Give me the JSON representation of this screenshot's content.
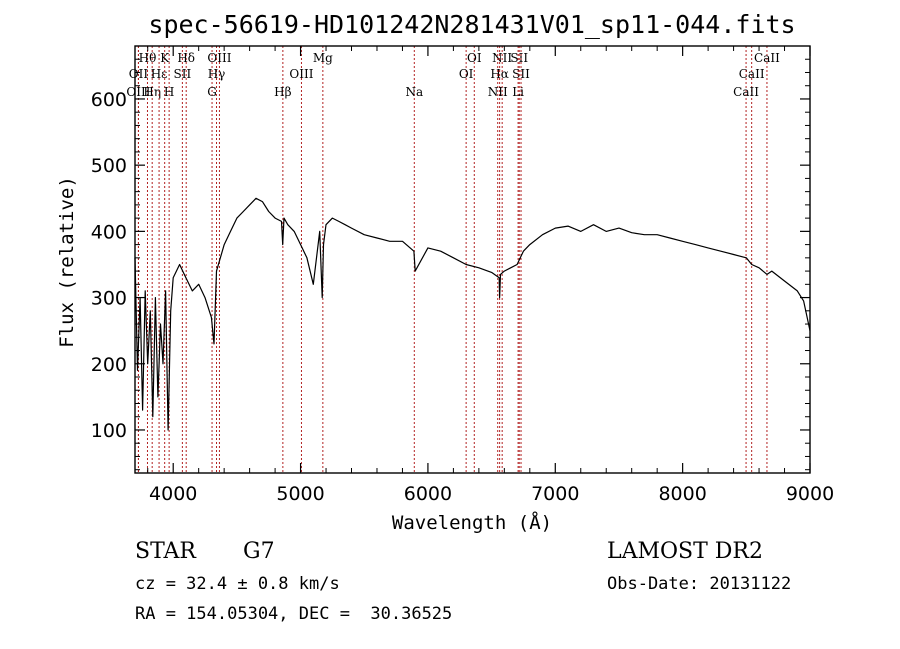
{
  "chart_data": {
    "type": "line",
    "title": "spec-56619-HD101242N281431V01_sp11-044.fits",
    "xlabel": "Wavelength (Å)",
    "ylabel": "Flux (relative)",
    "xlim": [
      3700,
      9000
    ],
    "ylim": [
      35,
      680
    ],
    "xticks": [
      4000,
      5000,
      6000,
      7000,
      8000,
      9000
    ],
    "yticks": [
      100,
      200,
      300,
      400,
      500,
      600
    ],
    "grid": false,
    "series": [
      {
        "x": [
          3700,
          3720,
          3740,
          3760,
          3780,
          3800,
          3820,
          3840,
          3860,
          3880,
          3900,
          3920,
          3940,
          3960,
          3980,
          4000,
          4050,
          4100,
          4150,
          4200,
          4250,
          4300,
          4320,
          4340,
          4400,
          4450,
          4500,
          4550,
          4600,
          4650,
          4700,
          4750,
          4800,
          4850,
          4860,
          4870,
          4900,
          4950,
          5000,
          5050,
          5100,
          5150,
          5170,
          5180,
          5200,
          5250,
          5300,
          5350,
          5400,
          5500,
          5600,
          5700,
          5800,
          5890,
          5900,
          6000,
          6100,
          6200,
          6300,
          6400,
          6500,
          6560,
          6563,
          6570,
          6600,
          6650,
          6700,
          6750,
          6800,
          6900,
          7000,
          7100,
          7200,
          7300,
          7400,
          7500,
          7600,
          7700,
          7800,
          7900,
          8000,
          8100,
          8200,
          8300,
          8400,
          8500,
          8542,
          8600,
          8662,
          8700,
          8800,
          8900,
          8950,
          9000
        ],
        "values": [
          360,
          190,
          300,
          130,
          310,
          200,
          280,
          120,
          300,
          150,
          260,
          200,
          310,
          100,
          280,
          330,
          350,
          330,
          310,
          320,
          300,
          270,
          230,
          340,
          380,
          400,
          420,
          430,
          440,
          450,
          445,
          430,
          420,
          415,
          380,
          420,
          410,
          400,
          380,
          360,
          320,
          400,
          300,
          380,
          410,
          420,
          415,
          410,
          405,
          395,
          390,
          385,
          385,
          370,
          340,
          375,
          370,
          360,
          350,
          345,
          338,
          330,
          300,
          335,
          340,
          345,
          350,
          370,
          380,
          395,
          405,
          408,
          400,
          410,
          400,
          405,
          398,
          395,
          395,
          390,
          385,
          380,
          375,
          370,
          365,
          360,
          350,
          345,
          335,
          340,
          325,
          310,
          295,
          250
        ]
      }
    ],
    "lines": [
      {
        "label": "Hθ",
        "w": 3798,
        "row": 1
      },
      {
        "label": "OII",
        "w": 3727,
        "row": 2
      },
      {
        "label": "OIII",
        "w": 3727,
        "row": 3
      },
      {
        "label": "Hη",
        "w": 3835,
        "row": 3
      },
      {
        "label": "Hε",
        "w": 3889,
        "row": 2
      },
      {
        "label": "K",
        "w": 3933,
        "row": 1
      },
      {
        "label": "H",
        "w": 3968,
        "row": 3
      },
      {
        "label": "SII",
        "w": 4072,
        "row": 2
      },
      {
        "label": "Hδ",
        "w": 4102,
        "row": 1
      },
      {
        "label": "OIII",
        "w": 4363,
        "row": 1
      },
      {
        "label": "Hγ",
        "w": 4340,
        "row": 2
      },
      {
        "label": "G",
        "w": 4305,
        "row": 3
      },
      {
        "label": "Hβ",
        "w": 4861,
        "row": 3
      },
      {
        "label": "OIII",
        "w": 5007,
        "row": 2
      },
      {
        "label": "Mg",
        "w": 5175,
        "row": 1
      },
      {
        "label": "Na",
        "w": 5893,
        "row": 3
      },
      {
        "label": "OI",
        "w": 6364,
        "row": 1
      },
      {
        "label": "OI",
        "w": 6300,
        "row": 2
      },
      {
        "label": "NII",
        "w": 6583,
        "row": 1
      },
      {
        "label": "Hα",
        "w": 6563,
        "row": 2
      },
      {
        "label": "NII",
        "w": 6548,
        "row": 3
      },
      {
        "label": "SII",
        "w": 6717,
        "row": 1
      },
      {
        "label": "SII",
        "w": 6731,
        "row": 2
      },
      {
        "label": "Li",
        "w": 6708,
        "row": 3
      },
      {
        "label": "CaII",
        "w": 8662,
        "row": 1
      },
      {
        "label": "CaII",
        "w": 8542,
        "row": 2
      },
      {
        "label": "CaII",
        "w": 8498,
        "row": 3
      }
    ]
  },
  "info": {
    "object_type": "STAR",
    "subclass": "G7",
    "survey": "LAMOST DR2",
    "redshift": "cz = 32.4 ± 0.8 km/s",
    "obs_date": "Obs-Date: 20131122",
    "coords": "RA = 154.05304, DEC =  30.36525"
  },
  "colors": {
    "line_markers": "#b22222",
    "spectrum": "#000000"
  }
}
